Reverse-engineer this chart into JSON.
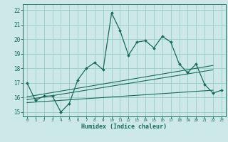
{
  "xlabel": "Humidex (Indice chaleur)",
  "bg_color": "#cce8e8",
  "grid_color": "#99cccc",
  "line_color": "#1a6b5a",
  "xlim": [
    -0.5,
    23.5
  ],
  "ylim": [
    14.7,
    22.4
  ],
  "x_ticks": [
    0,
    1,
    2,
    3,
    4,
    5,
    6,
    7,
    8,
    9,
    10,
    11,
    12,
    13,
    14,
    15,
    16,
    17,
    18,
    19,
    20,
    21,
    22,
    23
  ],
  "y_ticks": [
    15,
    16,
    17,
    18,
    19,
    20,
    21,
    22
  ],
  "main_x": [
    0,
    1,
    2,
    3,
    4,
    5,
    6,
    7,
    8,
    9,
    10,
    11,
    12,
    13,
    14,
    15,
    16,
    17,
    18,
    19,
    20,
    21,
    22,
    23
  ],
  "main_y": [
    17.0,
    15.8,
    16.1,
    16.1,
    15.0,
    15.6,
    17.2,
    18.0,
    18.4,
    17.9,
    21.8,
    20.6,
    18.9,
    19.8,
    19.9,
    19.4,
    20.2,
    19.8,
    18.3,
    17.7,
    18.3,
    16.9,
    16.3,
    16.5
  ],
  "line1_x": [
    0,
    22
  ],
  "line1_y": [
    16.05,
    18.2
  ],
  "line2_x": [
    0,
    22
  ],
  "line2_y": [
    15.85,
    17.9
  ],
  "line3_x": [
    0,
    22
  ],
  "line3_y": [
    15.65,
    16.5
  ]
}
